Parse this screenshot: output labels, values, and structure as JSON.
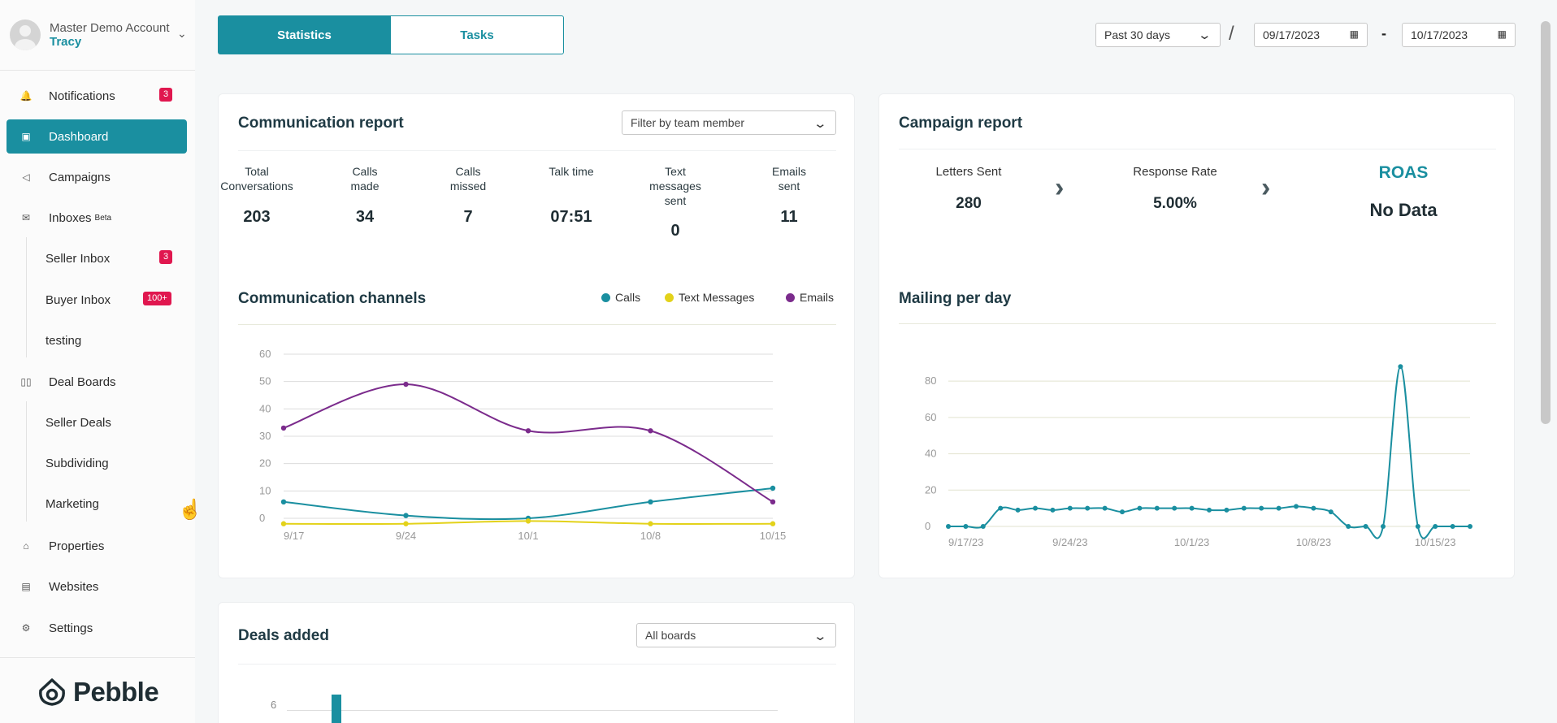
{
  "account": {
    "name": "Master Demo Account",
    "user": "Tracy"
  },
  "sidebar": {
    "notifications": {
      "label": "Notifications",
      "badge": "3"
    },
    "dashboard": {
      "label": "Dashboard"
    },
    "campaigns": {
      "label": "Campaigns"
    },
    "inboxes": {
      "label": "Inboxes",
      "tag": "Beta"
    },
    "seller_inbox": {
      "label": "Seller Inbox",
      "badge": "3"
    },
    "buyer_inbox": {
      "label": "Buyer Inbox",
      "badge": "100+"
    },
    "testing": {
      "label": "testing"
    },
    "deal_boards": {
      "label": "Deal Boards"
    },
    "seller_deals": {
      "label": "Seller Deals"
    },
    "subdividing": {
      "label": "Subdividing"
    },
    "marketing": {
      "label": "Marketing"
    },
    "properties": {
      "label": "Properties"
    },
    "websites": {
      "label": "Websites"
    },
    "settings": {
      "label": "Settings"
    }
  },
  "logo": {
    "text": "Pebble"
  },
  "tabs": {
    "statistics": "Statistics",
    "tasks": "Tasks"
  },
  "date_range": {
    "preset": "Past 30 days",
    "separator": "/",
    "dash": "-",
    "start": "09/17/2023",
    "end": "10/17/2023"
  },
  "communication_report": {
    "title": "Communication report",
    "filter": "Filter by team member",
    "stats": [
      {
        "label": "Total Conversations",
        "value": "203"
      },
      {
        "label": "Calls made",
        "value": "34"
      },
      {
        "label": "Calls missed",
        "value": "7"
      },
      {
        "label": "Talk time",
        "value": "07:51"
      },
      {
        "label": "Text messages sent",
        "value": "0"
      },
      {
        "label": "Emails sent",
        "value": "11"
      }
    ]
  },
  "campaign_report": {
    "title": "Campaign report",
    "letters_label": "Letters Sent",
    "letters_value": "280",
    "response_label": "Response Rate",
    "response_value": "5.00%",
    "roas_label": "ROAS",
    "roas_value": "No Data"
  },
  "communication_channels": {
    "title": "Communication channels",
    "legend": {
      "calls": "Calls",
      "texts": "Text Messages",
      "emails": "Emails"
    }
  },
  "mailing_per_day": {
    "title": "Mailing per day"
  },
  "deals_added": {
    "title": "Deals added",
    "filter": "All boards",
    "tick": "6"
  },
  "colors": {
    "accent": "#1a8fa0",
    "calls": "#1a8fa0",
    "texts": "#e3d21a",
    "emails": "#7b2b8c",
    "badge": "#e0174f"
  },
  "chart_data": [
    {
      "type": "line",
      "x": [
        "9/17",
        "9/24",
        "10/1",
        "10/8",
        "10/15"
      ],
      "ylim": [
        0,
        60
      ],
      "yticks": [
        "0",
        "10",
        "20",
        "30",
        "40",
        "50",
        "60"
      ],
      "series": [
        {
          "name": "Calls",
          "values": [
            6,
            1,
            0,
            6,
            11
          ]
        },
        {
          "name": "Text Messages",
          "values": [
            -2,
            -2,
            -1,
            -2,
            -2
          ]
        },
        {
          "name": "Emails",
          "values": [
            33,
            49,
            32,
            32,
            6
          ]
        }
      ]
    },
    {
      "type": "line",
      "xticks": [
        "9/17/23",
        "9/24/23",
        "10/1/23",
        "10/8/23",
        "10/15/23"
      ],
      "ylim": [
        0,
        85
      ],
      "yticks": [
        "0",
        "20",
        "40",
        "60",
        "80"
      ],
      "series": [
        {
          "values": [
            0,
            0,
            0,
            10,
            9,
            10,
            9,
            10,
            10,
            10,
            8,
            10,
            10,
            10,
            10,
            9,
            9,
            10,
            10,
            10,
            11,
            10,
            8,
            0,
            0,
            0,
            88,
            0,
            0,
            0,
            0
          ]
        }
      ]
    }
  ]
}
